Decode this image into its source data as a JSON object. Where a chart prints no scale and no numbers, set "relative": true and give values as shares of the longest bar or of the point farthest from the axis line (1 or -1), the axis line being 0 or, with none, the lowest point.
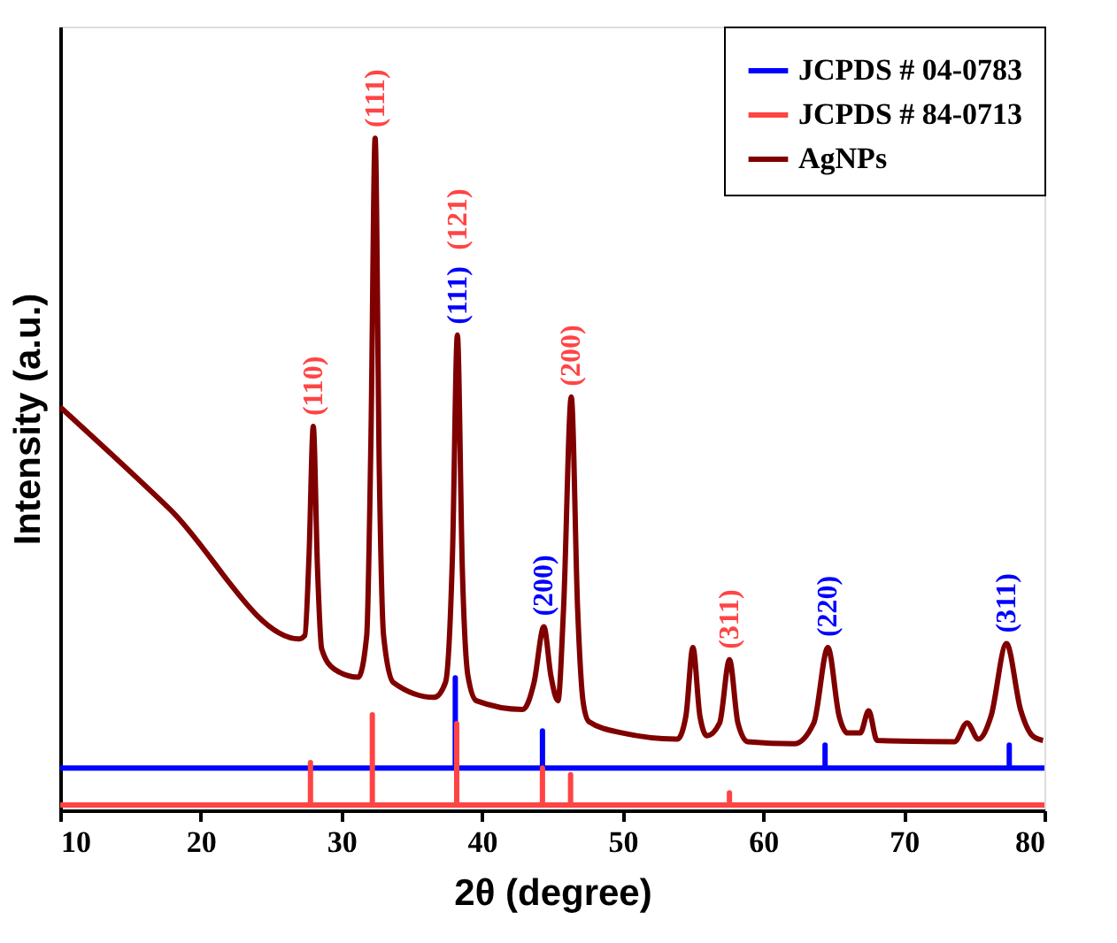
{
  "chart_data": {
    "type": "line",
    "relative": true,
    "xlabel": "2θ (degree)",
    "ylabel": "Intensity (a.u.)",
    "xlim": [
      10,
      80
    ],
    "xticks": [
      10,
      20,
      30,
      40,
      50,
      60,
      70,
      80
    ],
    "tick_labels": "x",
    "legend": "top right",
    "series": [
      {
        "name": "JCPDS # 04-0783",
        "color": "#0000ff",
        "x": [
          10,
          38.1,
          38.1,
          38.1,
          44.3,
          44.3,
          44.3,
          64.4,
          64.4,
          64.4,
          77.5,
          77.5,
          77.5,
          80
        ],
        "values": [
          0.063,
          0.063,
          0.197,
          0.063,
          0.063,
          0.118,
          0.063,
          0.063,
          0.097,
          0.063,
          0.063,
          0.097,
          0.063,
          0.063
        ]
      },
      {
        "name": "JCPDS # 84-0713",
        "color": "#ff4444",
        "x": [
          10,
          27.8,
          27.8,
          27.8,
          32.2,
          32.2,
          32.2,
          38.2,
          38.2,
          38.2,
          44.3,
          44.3,
          44.3,
          46.3,
          46.3,
          46.3,
          57.6,
          57.6,
          57.6,
          80
        ],
        "values": [
          0.008,
          0.008,
          0.071,
          0.008,
          0.008,
          0.142,
          0.008,
          0.008,
          0.129,
          0.008,
          0.008,
          0.063,
          0.008,
          0.008,
          0.053,
          0.008,
          0.008,
          0.026,
          0.008,
          0.008
        ]
      },
      {
        "name": "AgNPs",
        "color": "#800000",
        "x": [
          10,
          17.8,
          27.0,
          27.4,
          27.7,
          28.0,
          28.3,
          28.6,
          29.5,
          31.2,
          31.8,
          32.1,
          32.4,
          32.7,
          33.0,
          33.7,
          36.6,
          37.4,
          37.9,
          38.25,
          38.6,
          39.0,
          39.6,
          42.9,
          43.7,
          44.4,
          44.9,
          45.4,
          45.8,
          46.35,
          46.8,
          47.2,
          47.6,
          50,
          53.9,
          54.5,
          55.0,
          55.5,
          56.0,
          56.9,
          57.6,
          58.2,
          58.9,
          62.2,
          63.6,
          64.6,
          65.4,
          66.0,
          66.9,
          67.5,
          68.1,
          73.6,
          74.5,
          75.3,
          76.2,
          77.3,
          78.3,
          79.2,
          79.9
        ],
        "values": [
          0.6,
          0.448,
          0.255,
          0.26,
          0.38,
          0.571,
          0.36,
          0.24,
          0.21,
          0.198,
          0.26,
          0.55,
          1.0,
          0.5,
          0.26,
          0.19,
          0.168,
          0.19,
          0.38,
          0.707,
          0.36,
          0.2,
          0.163,
          0.15,
          0.19,
          0.273,
          0.2,
          0.163,
          0.3,
          0.615,
          0.3,
          0.16,
          0.132,
          0.115,
          0.106,
          0.14,
          0.242,
          0.14,
          0.111,
          0.13,
          0.224,
          0.13,
          0.102,
          0.099,
          0.13,
          0.242,
          0.14,
          0.115,
          0.115,
          0.148,
          0.104,
          0.102,
          0.13,
          0.106,
          0.14,
          0.248,
          0.15,
          0.11,
          0.104
        ]
      }
    ],
    "annotations": [
      {
        "text": "(110)",
        "x": 28.0,
        "y": 0.571
      },
      {
        "text": "(111)",
        "x": 32.4,
        "y": 1.0
      },
      {
        "text": "(111)",
        "x": 38.25,
        "y": 0.707
      },
      "(121)",
      {
        "text": "(200)",
        "x": 44.4,
        "y": 0.273
      },
      {
        "text": "(200)",
        "x": 46.35,
        "y": 0.615
      },
      {
        "text": "(311)",
        "x": 57.6,
        "y": 0.224
      },
      {
        "text": "(220)",
        "x": 64.6,
        "y": 0.242
      },
      {
        "text": "(311)",
        "x": 77.3,
        "y": 0.248
      }
    ]
  }
}
